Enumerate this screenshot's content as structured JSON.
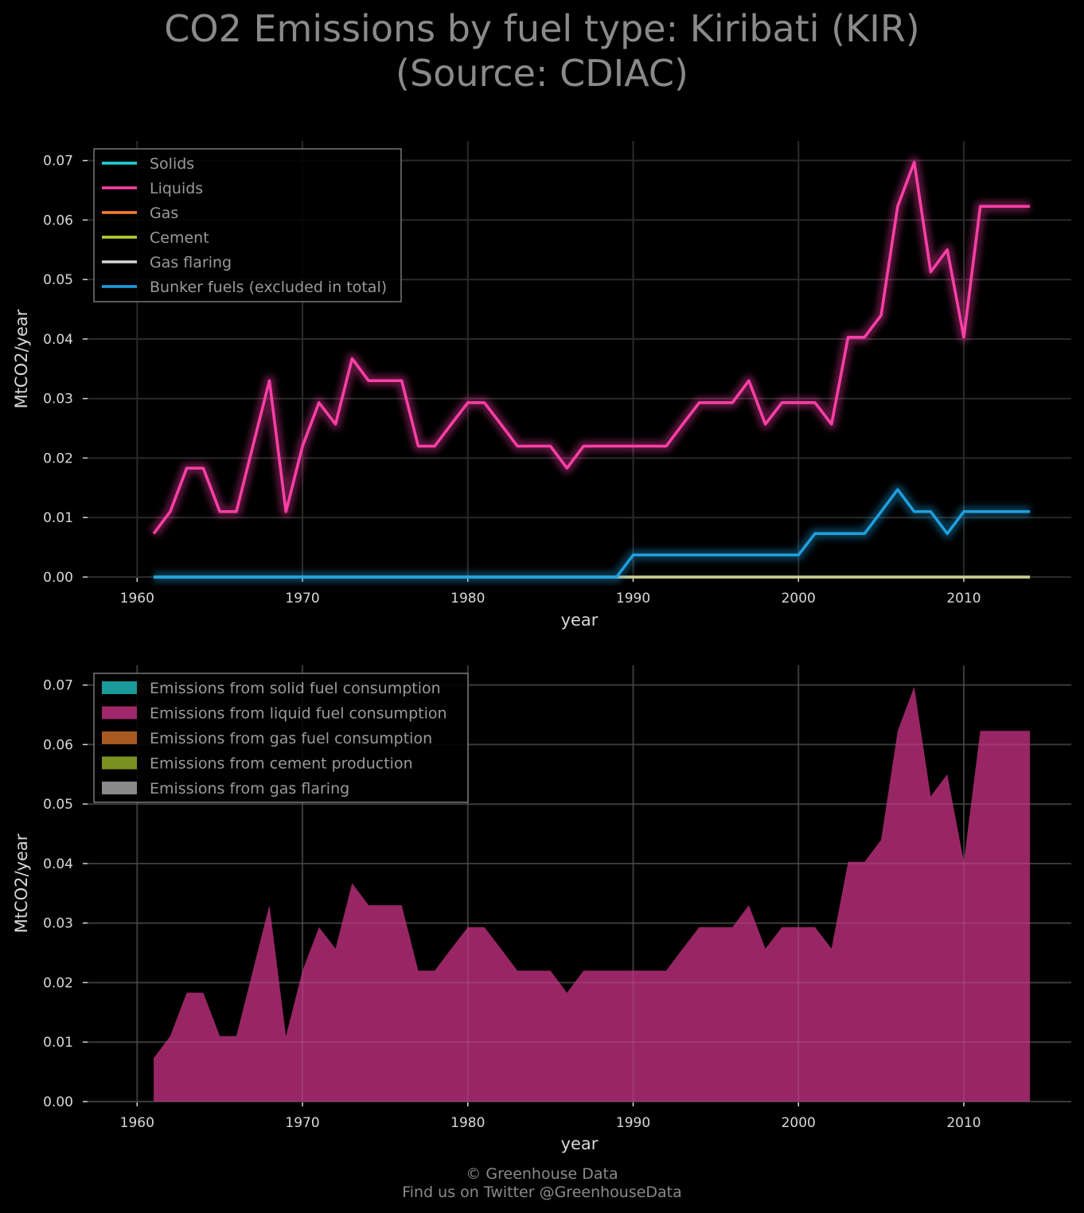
{
  "title": {
    "line1": "CO2 Emissions by fuel type: Kiribati (KIR)",
    "line2": "(Source: CDIAC)"
  },
  "footer": {
    "line1": "© Greenhouse Data",
    "line2": "Find us on Twitter @GreenhouseData"
  },
  "colors": {
    "background": "#000000",
    "grid": "#2a2a2a",
    "solids": "#1fd4d8",
    "liquids": "#ff3fa8",
    "gas": "#ff7f2a",
    "cement": "#b8d42a",
    "gas_flaring": "#d8d8d8",
    "bunker": "#1ea0e0",
    "area_solid": "#1a9a9a",
    "area_liquid": "#a0286a",
    "area_gas": "#a85a20",
    "area_cement": "#7a9020",
    "area_flaring": "#8a8a8a"
  },
  "chart_data": [
    {
      "type": "line",
      "xlabel": "year",
      "ylabel": "MtCO2/year",
      "xlim": [
        1957,
        2016.5
      ],
      "ylim": [
        0,
        0.0733
      ],
      "xticks": [
        "1960",
        "1970",
        "1980",
        "1990",
        "2000",
        "2010"
      ],
      "yticks": [
        "0.00",
        "0.01",
        "0.02",
        "0.03",
        "0.04",
        "0.05",
        "0.06",
        "0.07"
      ],
      "grid": true,
      "legend_position": "top-left",
      "x": [
        1961,
        1962,
        1963,
        1964,
        1965,
        1966,
        1967,
        1968,
        1969,
        1970,
        1971,
        1972,
        1973,
        1974,
        1975,
        1976,
        1977,
        1978,
        1979,
        1980,
        1981,
        1982,
        1983,
        1984,
        1985,
        1986,
        1987,
        1988,
        1989,
        1990,
        1991,
        1992,
        1993,
        1994,
        1995,
        1996,
        1997,
        1998,
        1999,
        2000,
        2001,
        2002,
        2003,
        2004,
        2005,
        2006,
        2007,
        2008,
        2009,
        2010,
        2011,
        2012,
        2013,
        2014
      ],
      "series": [
        {
          "name": "Solids",
          "color_key": "solids",
          "values": [
            0,
            0,
            0,
            0,
            0,
            0,
            0,
            0,
            0,
            0,
            0,
            0,
            0,
            0,
            0,
            0,
            0,
            0,
            0,
            0,
            0,
            0,
            0,
            0,
            0,
            0,
            0,
            0,
            0,
            0,
            0,
            0,
            0,
            0,
            0,
            0,
            0,
            0,
            0,
            0,
            0,
            0,
            0,
            0,
            0,
            0,
            0,
            0,
            0,
            0,
            0,
            0,
            0,
            0
          ]
        },
        {
          "name": "Liquids",
          "color_key": "liquids",
          "values": [
            0.0073,
            0.011,
            0.0183,
            0.0183,
            0.011,
            0.011,
            0.022,
            0.033,
            0.011,
            0.022,
            0.0293,
            0.0257,
            0.0367,
            0.033,
            0.033,
            0.033,
            0.022,
            0.022,
            0.0257,
            0.0293,
            0.0293,
            0.0257,
            0.022,
            0.022,
            0.022,
            0.0183,
            0.022,
            0.022,
            0.022,
            0.022,
            0.022,
            0.022,
            0.0257,
            0.0293,
            0.0293,
            0.0293,
            0.033,
            0.0257,
            0.0293,
            0.0293,
            0.0293,
            0.0257,
            0.0403,
            0.0403,
            0.044,
            0.0623,
            0.0697,
            0.0513,
            0.055,
            0.0403,
            0.0623,
            0.0623,
            0.0623,
            0.0623
          ]
        },
        {
          "name": "Gas",
          "color_key": "gas",
          "values": [
            0,
            0,
            0,
            0,
            0,
            0,
            0,
            0,
            0,
            0,
            0,
            0,
            0,
            0,
            0,
            0,
            0,
            0,
            0,
            0,
            0,
            0,
            0,
            0,
            0,
            0,
            0,
            0,
            0,
            0,
            0,
            0,
            0,
            0,
            0,
            0,
            0,
            0,
            0,
            0,
            0,
            0,
            0,
            0,
            0,
            0,
            0,
            0,
            0,
            0,
            0,
            0,
            0,
            0
          ]
        },
        {
          "name": "Cement",
          "color_key": "cement",
          "values": [
            0,
            0,
            0,
            0,
            0,
            0,
            0,
            0,
            0,
            0,
            0,
            0,
            0,
            0,
            0,
            0,
            0,
            0,
            0,
            0,
            0,
            0,
            0,
            0,
            0,
            0,
            0,
            0,
            0,
            0,
            0,
            0,
            0,
            0,
            0,
            0,
            0,
            0,
            0,
            0,
            0,
            0,
            0,
            0,
            0,
            0,
            0,
            0,
            0,
            0,
            0,
            0,
            0,
            0
          ]
        },
        {
          "name": "Gas flaring",
          "color_key": "gas_flaring",
          "values": [
            0,
            0,
            0,
            0,
            0,
            0,
            0,
            0,
            0,
            0,
            0,
            0,
            0,
            0,
            0,
            0,
            0,
            0,
            0,
            0,
            0,
            0,
            0,
            0,
            0,
            0,
            0,
            0,
            0,
            0,
            0,
            0,
            0,
            0,
            0,
            0,
            0,
            0,
            0,
            0,
            0,
            0,
            0,
            0,
            0,
            0,
            0,
            0,
            0,
            0,
            0,
            0,
            0,
            0
          ]
        },
        {
          "name": "Bunker fuels (excluded in total)",
          "color_key": "bunker",
          "values": [
            0,
            0,
            0,
            0,
            0,
            0,
            0,
            0,
            0,
            0,
            0,
            0,
            0,
            0,
            0,
            0,
            0,
            0,
            0,
            0,
            0,
            0,
            0,
            0,
            0,
            0,
            0,
            0,
            0,
            0.0037,
            0.0037,
            0.0037,
            0.0037,
            0.0037,
            0.0037,
            0.0037,
            0.0037,
            0.0037,
            0.0037,
            0.0037,
            0.0073,
            0.0073,
            0.0073,
            0.0073,
            0.011,
            0.0147,
            0.011,
            0.011,
            0.0073,
            0.011,
            0.011,
            0.011,
            0.011,
            0.011
          ]
        }
      ]
    },
    {
      "type": "area",
      "xlabel": "year",
      "ylabel": "MtCO2/year",
      "xlim": [
        1957,
        2016.5
      ],
      "ylim": [
        0,
        0.0733
      ],
      "xticks": [
        "1960",
        "1970",
        "1980",
        "1990",
        "2000",
        "2010"
      ],
      "yticks": [
        "0.00",
        "0.01",
        "0.02",
        "0.03",
        "0.04",
        "0.05",
        "0.06",
        "0.07"
      ],
      "grid": true,
      "legend_position": "top-left",
      "stacked": true,
      "x": [
        1961,
        1962,
        1963,
        1964,
        1965,
        1966,
        1967,
        1968,
        1969,
        1970,
        1971,
        1972,
        1973,
        1974,
        1975,
        1976,
        1977,
        1978,
        1979,
        1980,
        1981,
        1982,
        1983,
        1984,
        1985,
        1986,
        1987,
        1988,
        1989,
        1990,
        1991,
        1992,
        1993,
        1994,
        1995,
        1996,
        1997,
        1998,
        1999,
        2000,
        2001,
        2002,
        2003,
        2004,
        2005,
        2006,
        2007,
        2008,
        2009,
        2010,
        2011,
        2012,
        2013,
        2014
      ],
      "series": [
        {
          "name": "Emissions from solid fuel consumption",
          "color_key": "area_solid",
          "values": [
            0,
            0,
            0,
            0,
            0,
            0,
            0,
            0,
            0,
            0,
            0,
            0,
            0,
            0,
            0,
            0,
            0,
            0,
            0,
            0,
            0,
            0,
            0,
            0,
            0,
            0,
            0,
            0,
            0,
            0,
            0,
            0,
            0,
            0,
            0,
            0,
            0,
            0,
            0,
            0,
            0,
            0,
            0,
            0,
            0,
            0,
            0,
            0,
            0,
            0,
            0,
            0,
            0,
            0
          ]
        },
        {
          "name": "Emissions from liquid fuel consumption",
          "color_key": "area_liquid",
          "values": [
            0.0073,
            0.011,
            0.0183,
            0.0183,
            0.011,
            0.011,
            0.022,
            0.033,
            0.011,
            0.022,
            0.0293,
            0.0257,
            0.0367,
            0.033,
            0.033,
            0.033,
            0.022,
            0.022,
            0.0257,
            0.0293,
            0.0293,
            0.0257,
            0.022,
            0.022,
            0.022,
            0.0183,
            0.022,
            0.022,
            0.022,
            0.022,
            0.022,
            0.022,
            0.0257,
            0.0293,
            0.0293,
            0.0293,
            0.033,
            0.0257,
            0.0293,
            0.0293,
            0.0293,
            0.0257,
            0.0403,
            0.0403,
            0.044,
            0.0623,
            0.0697,
            0.0513,
            0.055,
            0.0403,
            0.0623,
            0.0623,
            0.0623,
            0.0623
          ]
        },
        {
          "name": "Emissions from gas fuel consumption",
          "color_key": "area_gas",
          "values": [
            0,
            0,
            0,
            0,
            0,
            0,
            0,
            0,
            0,
            0,
            0,
            0,
            0,
            0,
            0,
            0,
            0,
            0,
            0,
            0,
            0,
            0,
            0,
            0,
            0,
            0,
            0,
            0,
            0,
            0,
            0,
            0,
            0,
            0,
            0,
            0,
            0,
            0,
            0,
            0,
            0,
            0,
            0,
            0,
            0,
            0,
            0,
            0,
            0,
            0,
            0,
            0,
            0,
            0
          ]
        },
        {
          "name": "Emissions from cement production",
          "color_key": "area_cement",
          "values": [
            0,
            0,
            0,
            0,
            0,
            0,
            0,
            0,
            0,
            0,
            0,
            0,
            0,
            0,
            0,
            0,
            0,
            0,
            0,
            0,
            0,
            0,
            0,
            0,
            0,
            0,
            0,
            0,
            0,
            0,
            0,
            0,
            0,
            0,
            0,
            0,
            0,
            0,
            0,
            0,
            0,
            0,
            0,
            0,
            0,
            0,
            0,
            0,
            0,
            0,
            0,
            0,
            0,
            0
          ]
        },
        {
          "name": "Emissions from gas flaring",
          "color_key": "area_flaring",
          "values": [
            0,
            0,
            0,
            0,
            0,
            0,
            0,
            0,
            0,
            0,
            0,
            0,
            0,
            0,
            0,
            0,
            0,
            0,
            0,
            0,
            0,
            0,
            0,
            0,
            0,
            0,
            0,
            0,
            0,
            0,
            0,
            0,
            0,
            0,
            0,
            0,
            0,
            0,
            0,
            0,
            0,
            0,
            0,
            0,
            0,
            0,
            0,
            0,
            0,
            0,
            0,
            0,
            0,
            0
          ]
        }
      ]
    }
  ]
}
